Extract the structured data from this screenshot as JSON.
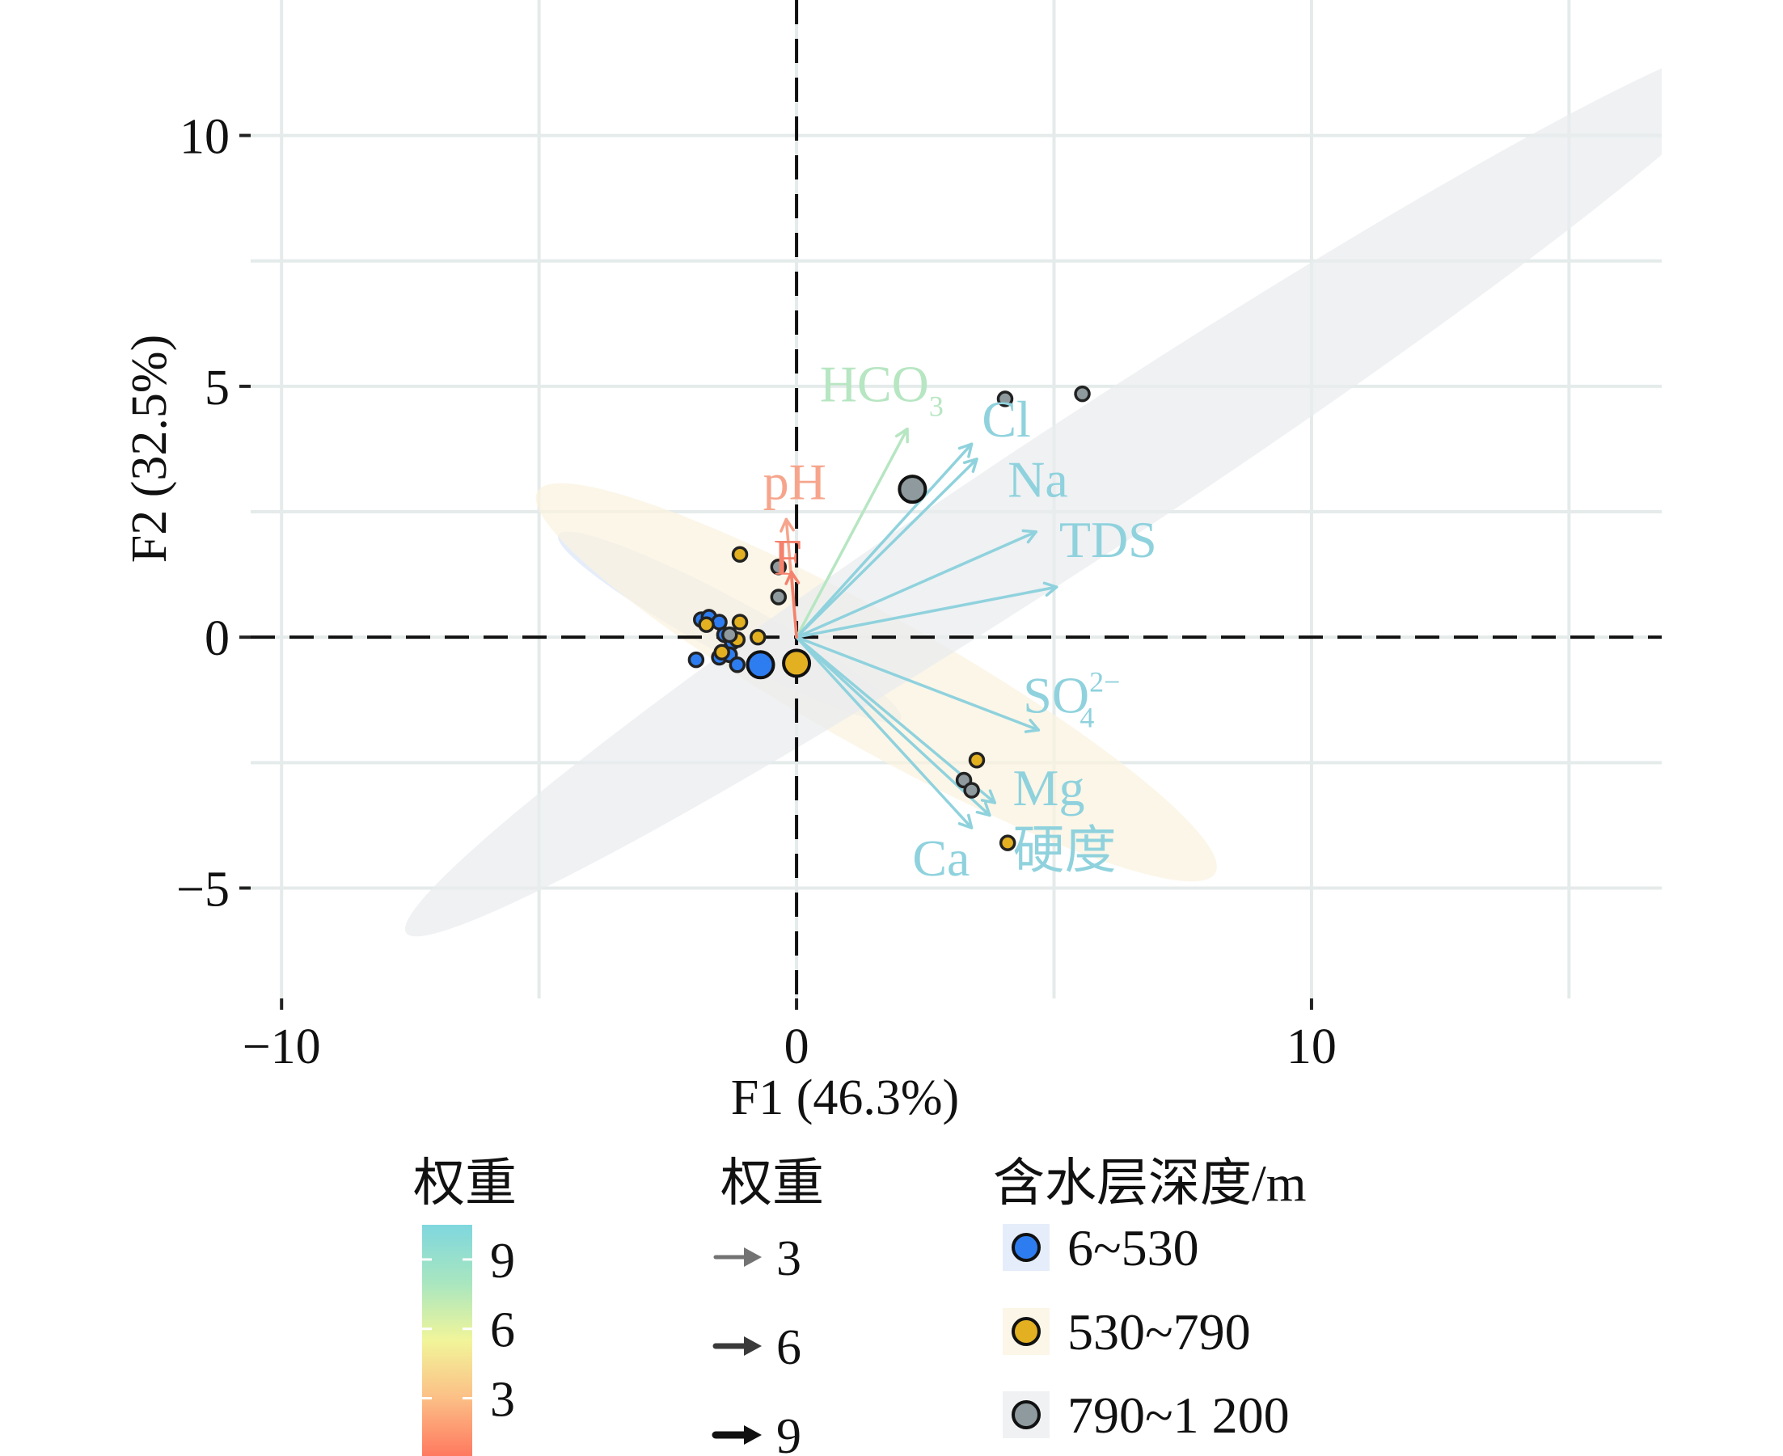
{
  "chart_data": {
    "type": "scatter",
    "subtype": "pca-biplot",
    "xlabel": "F1 (46.3%)",
    "ylabel": "F2 (32.5%)",
    "xlim": [
      -10.6,
      16.8
    ],
    "ylim": [
      -7.2,
      12.7
    ],
    "xticks": [
      {
        "value": -10,
        "label": "−10"
      },
      {
        "value": 0,
        "label": "0"
      },
      {
        "value": 10,
        "label": "10"
      }
    ],
    "yticks": [
      {
        "value": -5,
        "label": "−5"
      },
      {
        "value": 0,
        "label": "0"
      },
      {
        "value": 5,
        "label": "5"
      },
      {
        "value": 10,
        "label": "10"
      }
    ],
    "minor_grid_x": [
      -5,
      5,
      15
    ],
    "minor_grid_y": [
      -2.5,
      2.5,
      7.5
    ],
    "grid": true,
    "zero_lines": "dashed",
    "groups": [
      {
        "name": "6~530",
        "color": "#2e7df0",
        "ellipse": {
          "cx": -1.3,
          "cy": 0.2,
          "rx": 3.8,
          "ry": 0.55,
          "angle_deg": -29,
          "fill": "#dbe6f8"
        },
        "centroid": [
          -0.7,
          -0.55
        ],
        "points": [
          [
            -1.85,
            0.35
          ],
          [
            -1.7,
            0.4
          ],
          [
            -1.5,
            0.3
          ],
          [
            -1.4,
            0.05
          ],
          [
            -1.25,
            -0.1
          ],
          [
            -1.5,
            -0.4
          ],
          [
            -1.3,
            -0.35
          ],
          [
            -1.15,
            -0.55
          ],
          [
            -1.95,
            -0.45
          ]
        ]
      },
      {
        "name": "530~790",
        "color": "#e2b021",
        "ellipse": {
          "cx": 1.55,
          "cy": -0.9,
          "rx": 7.6,
          "ry": 1.3,
          "angle_deg": -30,
          "fill": "#fbf3df"
        },
        "centroid": [
          0.0,
          -0.52
        ],
        "points": [
          [
            -1.1,
            1.65
          ],
          [
            -1.75,
            0.25
          ],
          [
            -1.1,
            0.3
          ],
          [
            -1.15,
            -0.05
          ],
          [
            -0.75,
            0.0
          ],
          [
            -1.45,
            -0.3
          ],
          [
            3.5,
            -2.45
          ],
          [
            4.1,
            -4.1
          ]
        ]
      },
      {
        "name": "790~1 200",
        "color": "#8e9a9d",
        "ellipse": {
          "cx": 5.6,
          "cy": 3.0,
          "rx": 15.9,
          "ry": 1.35,
          "angle_deg": 34,
          "fill": "#e9ebee"
        },
        "centroid": [
          2.25,
          2.95
        ],
        "points": [
          [
            4.05,
            4.75
          ],
          [
            5.55,
            4.85
          ],
          [
            -0.35,
            1.4
          ],
          [
            -0.35,
            0.8
          ],
          [
            -1.3,
            0.05
          ],
          [
            3.25,
            -2.85
          ],
          [
            3.4,
            -3.05
          ]
        ]
      }
    ],
    "loadings": [
      {
        "name": "HCO₃⁻",
        "base": "HCO",
        "sub": "3",
        "sup": "",
        "x": 2.15,
        "y": 4.15,
        "weight": 8,
        "color": "#b7e6c2",
        "label_x": 0.45,
        "label_y": 4.7
      },
      {
        "name": "Cl",
        "base": "Cl",
        "sub": "",
        "sup": "",
        "x": 3.4,
        "y": 3.85,
        "weight": 9,
        "color": "#8fd2dd",
        "label_x": 3.6,
        "label_y": 4.0
      },
      {
        "name": "Na",
        "base": "Na",
        "sub": "",
        "sup": "",
        "x": 3.5,
        "y": 3.55,
        "weight": 9,
        "color": "#8fd2dd",
        "label_x": 4.1,
        "label_y": 2.8
      },
      {
        "name": "TDS",
        "base": "TDS",
        "sub": "",
        "sup": "",
        "x": 4.65,
        "y": 2.1,
        "weight": 9,
        "color": "#8fd2dd",
        "label_x": 5.1,
        "label_y": 1.6
      },
      {
        "name": "",
        "base": "",
        "sub": "",
        "sup": "",
        "x": 5.05,
        "y": 1.0,
        "weight": 9,
        "color": "#8fd2dd",
        "label_x": 0,
        "label_y": 0
      },
      {
        "name": "SO₄²⁻",
        "base": "SO",
        "sub": "4",
        "sup": "2−",
        "x": 4.7,
        "y": -1.85,
        "weight": 9,
        "color": "#8fd2dd",
        "label_x": 4.4,
        "label_y": -1.5
      },
      {
        "name": "Mg",
        "base": "Mg",
        "sub": "",
        "sup": "",
        "x": 3.85,
        "y": -3.3,
        "weight": 9,
        "color": "#8fd2dd",
        "label_x": 4.2,
        "label_y": -3.35
      },
      {
        "name": "硬度",
        "base": "硬度",
        "sub": "",
        "sup": "",
        "x": 3.75,
        "y": -3.55,
        "weight": 9,
        "color": "#8fd2dd",
        "label_x": 4.2,
        "label_y": -4.6
      },
      {
        "name": "Ca",
        "base": "Ca",
        "sub": "",
        "sup": "",
        "x": 3.4,
        "y": -3.8,
        "weight": 9,
        "color": "#8fd2dd",
        "label_x": 2.25,
        "label_y": -4.75
      },
      {
        "name": "pH",
        "base": "pH",
        "sub": "",
        "sup": "",
        "x": -0.2,
        "y": 2.35,
        "weight": 2,
        "color": "#f6a58c",
        "label_x": -0.65,
        "label_y": 2.75
      },
      {
        "name": "F",
        "base": "F",
        "sub": "",
        "sup": "",
        "x": -0.1,
        "y": 1.3,
        "weight": 1,
        "color": "#f4826d",
        "label_x": -0.45,
        "label_y": 1.25
      }
    ],
    "legend": {
      "placement": "bottom",
      "colorbar": {
        "title": "权重",
        "ticks": [
          9,
          6,
          3
        ],
        "range": [
          0.5,
          10.5
        ],
        "colors": [
          "#fe7960",
          "#fcbf86",
          "#f1f59a",
          "#a8e6c0",
          "#7fd7de"
        ]
      },
      "arrow_width": {
        "title": "权重",
        "entries": [
          {
            "label": "3",
            "color": "#737373"
          },
          {
            "label": "6",
            "color": "#3a3a3a"
          },
          {
            "label": "9",
            "color": "#111111"
          }
        ]
      },
      "groups": {
        "title": "含水层深度/m"
      }
    }
  }
}
